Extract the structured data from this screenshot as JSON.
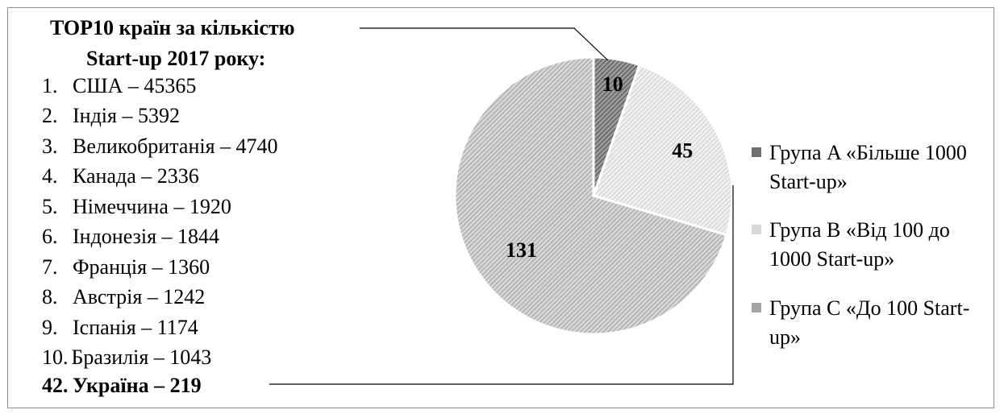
{
  "title_lines": [
    "TOP10 країн за кількістю",
    "Start-up 2017 року:"
  ],
  "countries": [
    {
      "num": "1.",
      "text": "США – 45365"
    },
    {
      "num": "2.",
      "text": "Індія – 5392"
    },
    {
      "num": "3.",
      "text": "Великобританія – 4740"
    },
    {
      "num": "4.",
      "text": "Канада – 2336"
    },
    {
      "num": "5.",
      "text": "Німеччина – 1920"
    },
    {
      "num": "6.",
      "text": "Індонезія – 1844"
    },
    {
      "num": "7.",
      "text": "Франція – 1360"
    },
    {
      "num": "8.",
      "text": "Австрія – 1242"
    },
    {
      "num": "9.",
      "text": "Іспанія – 1174"
    },
    {
      "num": "10.",
      "text": "Бразилія – 1043"
    }
  ],
  "ukraine": {
    "num": "42.",
    "text": "Україна – 219"
  },
  "chart_data": {
    "type": "pie",
    "categories": [
      "Група A «Більше 1000 Start-up»",
      "Група B «Від 100 до 1000 Start-up»",
      "Група C «До 100 Start-up»"
    ],
    "values": [
      10,
      45,
      131
    ],
    "data_labels": [
      "10",
      "45",
      "131"
    ],
    "legend_position": "right",
    "colors": [
      "#707070",
      "#d4d4d4",
      "#a6a6a6"
    ]
  },
  "legend": [
    {
      "text": "Група A «Більше 1000 Start-up»"
    },
    {
      "text": "Група B «Від 100 до 1000 Start-up»"
    },
    {
      "text": "Група C «До 100 Start-up»"
    }
  ]
}
